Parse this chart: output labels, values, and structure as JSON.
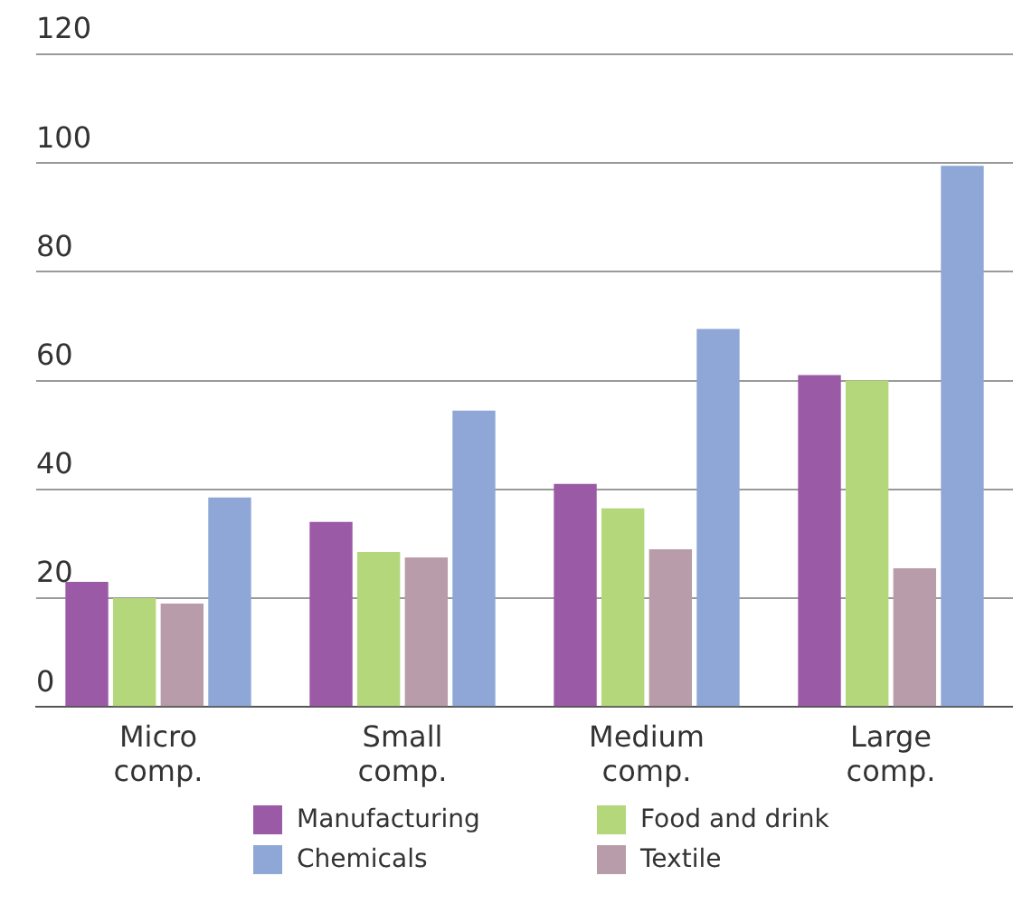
{
  "chart_data": {
    "type": "bar",
    "categories": [
      "Micro comp.",
      "Small comp.",
      "Medium comp.",
      "Large comp."
    ],
    "series": [
      {
        "name": "Manufacturing",
        "color": "#9b5aa5",
        "values": [
          23,
          34,
          41,
          61
        ]
      },
      {
        "name": "Food and drink",
        "color": "#b5d77c",
        "values": [
          20,
          28.5,
          36.5,
          60
        ]
      },
      {
        "name": "Textile",
        "color": "#b99ca9",
        "values": [
          19,
          27.5,
          29,
          25.5
        ]
      },
      {
        "name": "Chemicals",
        "color": "#8fa7d6",
        "values": [
          38.5,
          54.5,
          69.5,
          99.5
        ]
      }
    ],
    "ylim": [
      0,
      120
    ],
    "yticks": [
      0,
      20,
      40,
      60,
      80,
      100,
      120
    ],
    "grid": "y",
    "legend": "bottom"
  }
}
